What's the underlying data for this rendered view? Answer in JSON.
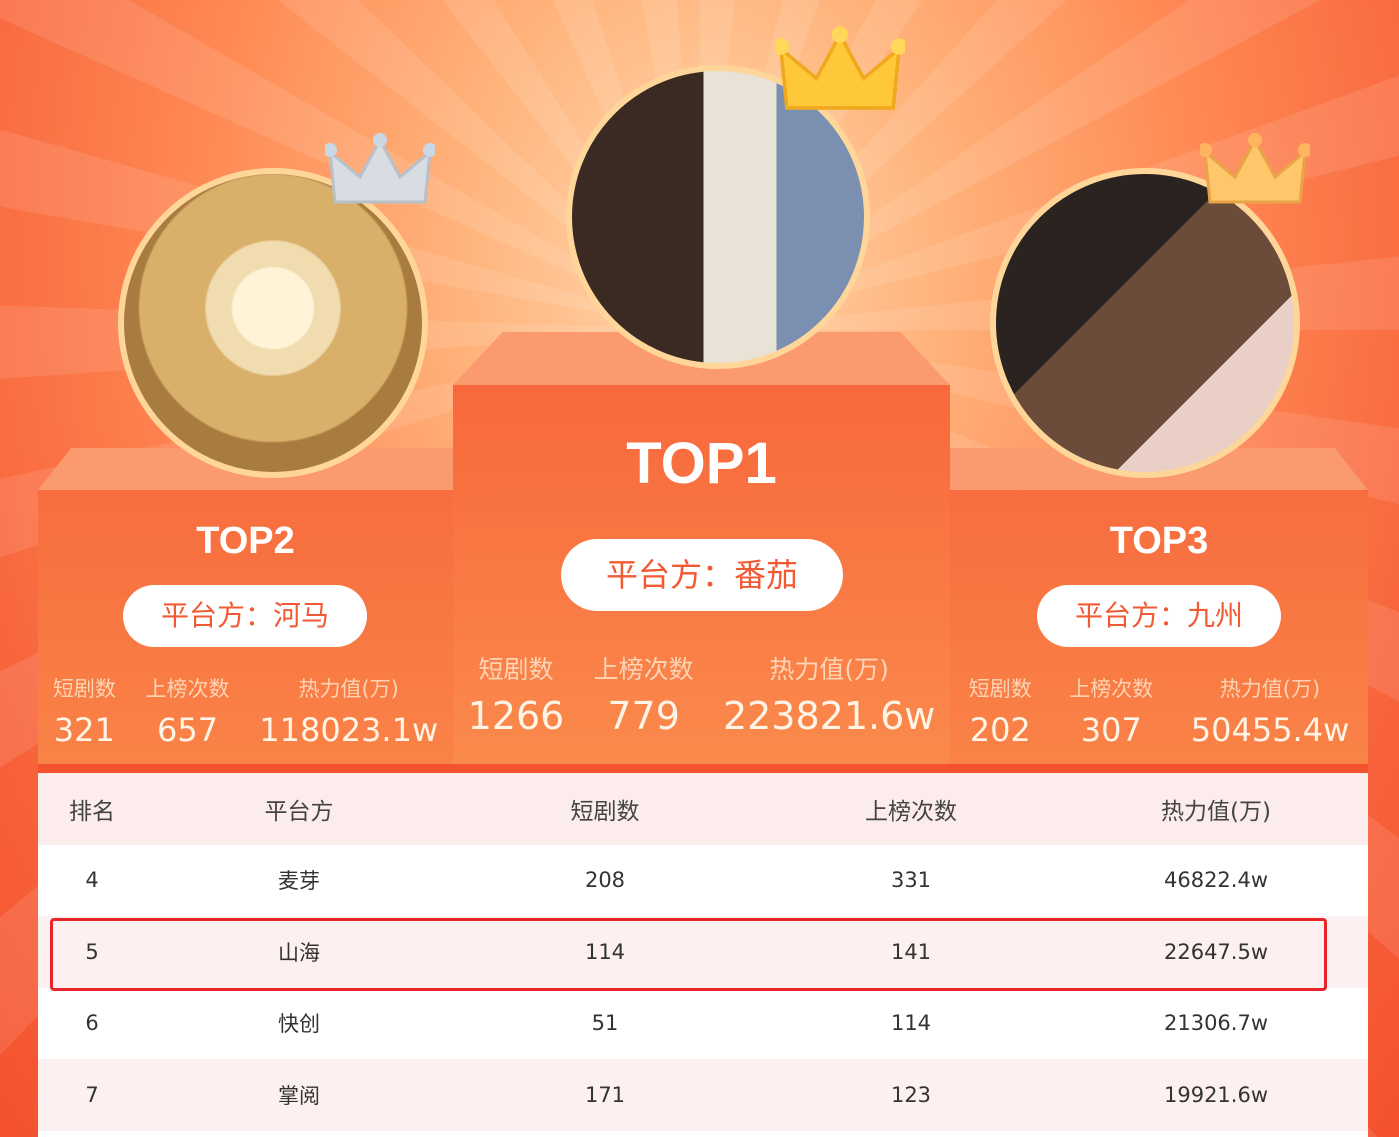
{
  "podium": [
    {
      "rank_label": "TOP1",
      "platform": "平台方：番茄",
      "labels": [
        "短剧数",
        "上榜次数",
        "热力值(万)"
      ],
      "values": [
        "1266",
        "779",
        "223821.6w"
      ]
    },
    {
      "rank_label": "TOP2",
      "platform": "平台方：河马",
      "labels": [
        "短剧数",
        "上榜次数",
        "热力值(万)"
      ],
      "values": [
        "321",
        "657",
        "118023.1w"
      ]
    },
    {
      "rank_label": "TOP3",
      "platform": "平台方：九州",
      "labels": [
        "短剧数",
        "上榜次数",
        "热力值(万)"
      ],
      "values": [
        "202",
        "307",
        "50455.4w"
      ]
    }
  ],
  "table": {
    "headers": [
      "排名",
      "平台方",
      "短剧数",
      "上榜次数",
      "热力值(万)"
    ],
    "rows": [
      [
        "4",
        "麦芽",
        "208",
        "331",
        "46822.4w"
      ],
      [
        "5",
        "山海",
        "114",
        "141",
        "22647.5w"
      ],
      [
        "6",
        "快创",
        "51",
        "114",
        "21306.7w"
      ],
      [
        "7",
        "掌阅",
        "171",
        "123",
        "19921.6w"
      ]
    ],
    "highlighted_rank": "5"
  },
  "colors": {
    "accent": "#f4512e",
    "highlight": "#e8262a",
    "crown_gold": "#ffc83a",
    "crown_silver": "#d8dde3"
  }
}
